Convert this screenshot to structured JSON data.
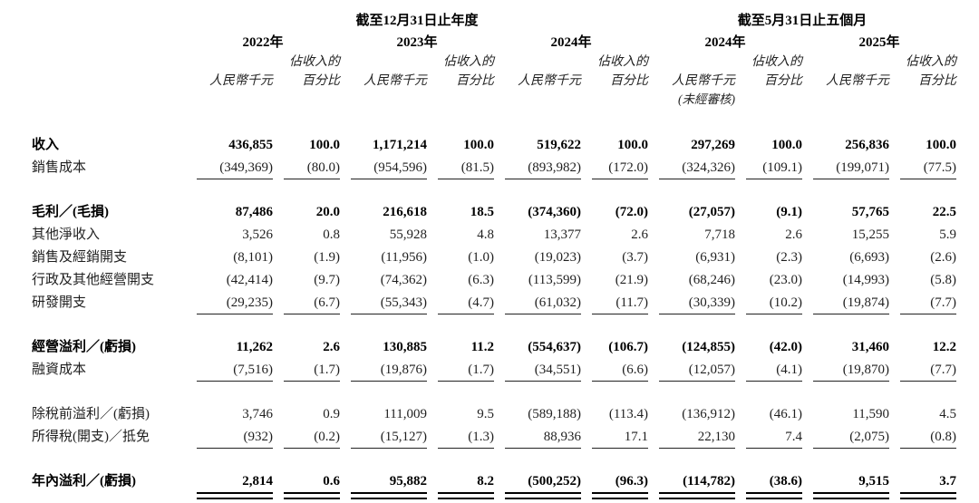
{
  "page": {
    "background_color": "#ffffff",
    "text_color": "#1f1f1f",
    "emphasis_color": "#000000"
  },
  "table": {
    "column_groups": [
      {
        "title": "截至12月31日止年度",
        "period_span": 3
      },
      {
        "title": "截至5月31日止五個月",
        "period_span": 2
      }
    ],
    "periods": [
      {
        "year": "2022年",
        "unit": "人民幣千元",
        "pct_top": "佔收入的",
        "pct_bottom": "百分比",
        "note": ""
      },
      {
        "year": "2023年",
        "unit": "人民幣千元",
        "pct_top": "佔收入的",
        "pct_bottom": "百分比",
        "note": ""
      },
      {
        "year": "2024年",
        "unit": "人民幣千元",
        "pct_top": "佔收入的",
        "pct_bottom": "百分比",
        "note": ""
      },
      {
        "year": "2024年",
        "unit": "人民幣千元",
        "pct_top": "佔收入的",
        "pct_bottom": "百分比",
        "note": "(未經審核)"
      },
      {
        "year": "2025年",
        "unit": "人民幣千元",
        "pct_top": "佔收入的",
        "pct_bottom": "百分比",
        "note": ""
      }
    ],
    "rows": [
      {
        "label": "收入",
        "bold": true,
        "gap_before": false,
        "rule": "none",
        "values": [
          "436,855",
          "100.0",
          "1,171,214",
          "100.0",
          "519,622",
          "100.0",
          "297,269",
          "100.0",
          "256,836",
          "100.0"
        ]
      },
      {
        "label": "銷售成本",
        "bold": false,
        "gap_before": false,
        "rule": "single",
        "values": [
          "(349,369)",
          "(80.0)",
          "(954,596)",
          "(81.5)",
          "(893,982)",
          "(172.0)",
          "(324,326)",
          "(109.1)",
          "(199,071)",
          "(77.5)"
        ]
      },
      {
        "label": "毛利／(毛損)",
        "bold": true,
        "gap_before": true,
        "rule": "none",
        "values": [
          "87,486",
          "20.0",
          "216,618",
          "18.5",
          "(374,360)",
          "(72.0)",
          "(27,057)",
          "(9.1)",
          "57,765",
          "22.5"
        ]
      },
      {
        "label": "其他淨收入",
        "bold": false,
        "gap_before": false,
        "rule": "none",
        "values": [
          "3,526",
          "0.8",
          "55,928",
          "4.8",
          "13,377",
          "2.6",
          "7,718",
          "2.6",
          "15,255",
          "5.9"
        ]
      },
      {
        "label": "銷售及經銷開支",
        "bold": false,
        "gap_before": false,
        "rule": "none",
        "values": [
          "(8,101)",
          "(1.9)",
          "(11,956)",
          "(1.0)",
          "(19,023)",
          "(3.7)",
          "(6,931)",
          "(2.3)",
          "(6,693)",
          "(2.6)"
        ]
      },
      {
        "label": "行政及其他經營開支",
        "bold": false,
        "gap_before": false,
        "rule": "none",
        "values": [
          "(42,414)",
          "(9.7)",
          "(74,362)",
          "(6.3)",
          "(113,599)",
          "(21.9)",
          "(68,246)",
          "(23.0)",
          "(14,993)",
          "(5.8)"
        ]
      },
      {
        "label": "研發開支",
        "bold": false,
        "gap_before": false,
        "rule": "single",
        "values": [
          "(29,235)",
          "(6.7)",
          "(55,343)",
          "(4.7)",
          "(61,032)",
          "(11.7)",
          "(30,339)",
          "(10.2)",
          "(19,874)",
          "(7.7)"
        ]
      },
      {
        "label": "經營溢利／(虧損)",
        "bold": true,
        "gap_before": true,
        "rule": "none",
        "values": [
          "11,262",
          "2.6",
          "130,885",
          "11.2",
          "(554,637)",
          "(106.7)",
          "(124,855)",
          "(42.0)",
          "31,460",
          "12.2"
        ]
      },
      {
        "label": "融資成本",
        "bold": false,
        "gap_before": false,
        "rule": "single",
        "values": [
          "(7,516)",
          "(1.7)",
          "(19,876)",
          "(1.7)",
          "(34,551)",
          "(6.6)",
          "(12,057)",
          "(4.1)",
          "(19,870)",
          "(7.7)"
        ]
      },
      {
        "label": "除稅前溢利／(虧損)",
        "bold": false,
        "gap_before": true,
        "rule": "none",
        "values": [
          "3,746",
          "0.9",
          "111,009",
          "9.5",
          "(589,188)",
          "(113.4)",
          "(136,912)",
          "(46.1)",
          "11,590",
          "4.5"
        ]
      },
      {
        "label": "所得稅(開支)／抵免",
        "bold": false,
        "gap_before": false,
        "rule": "single",
        "values": [
          "(932)",
          "(0.2)",
          "(15,127)",
          "(1.3)",
          "88,936",
          "17.1",
          "22,130",
          "7.4",
          "(2,075)",
          "(0.8)"
        ]
      },
      {
        "label": "年內溢利／(虧損)",
        "bold": true,
        "gap_before": true,
        "rule": "double",
        "values": [
          "2,814",
          "0.6",
          "95,882",
          "8.2",
          "(500,252)",
          "(96.3)",
          "(114,782)",
          "(38.6)",
          "9,515",
          "3.7"
        ]
      }
    ]
  }
}
